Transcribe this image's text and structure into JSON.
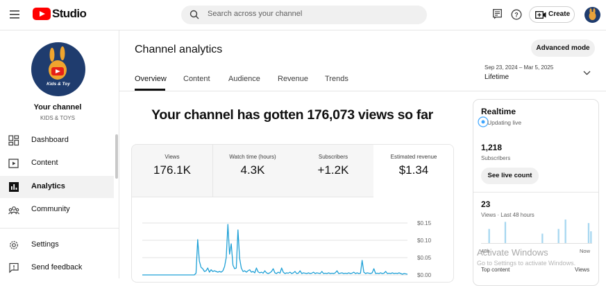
{
  "app": {
    "title": "Studio"
  },
  "search": {
    "placeholder": "Search across your channel"
  },
  "header": {
    "create_label": "Create"
  },
  "sidebar": {
    "channel_label": "Your channel",
    "channel_name": "KIDS & TOYS",
    "avatar_text": "Kids & Toy",
    "items": [
      {
        "label": "Dashboard",
        "icon": "dashboard-icon"
      },
      {
        "label": "Content",
        "icon": "content-icon"
      },
      {
        "label": "Analytics",
        "icon": "analytics-icon",
        "active": true
      },
      {
        "label": "Community",
        "icon": "community-icon"
      },
      {
        "label": "Settings",
        "icon": "settings-icon"
      },
      {
        "label": "Send feedback",
        "icon": "feedback-icon"
      }
    ]
  },
  "main": {
    "title": "Channel analytics",
    "advanced_mode_label": "Advanced mode",
    "tabs": [
      "Overview",
      "Content",
      "Audience",
      "Revenue",
      "Trends"
    ],
    "active_tab": "Overview",
    "date_range": "Sep 23, 2024 – Mar 5, 2025",
    "date_period": "Lifetime",
    "headline": "Your channel has gotten 176,073 views so far",
    "kpis": [
      {
        "title": "Views",
        "value": "176.1K"
      },
      {
        "title": "Watch time (hours)",
        "value": "4.3K"
      },
      {
        "title": "Subscribers",
        "value": "+1.2K"
      },
      {
        "title": "Estimated revenue",
        "value": "$1.34"
      }
    ]
  },
  "chart_data": {
    "type": "line",
    "y_tick_labels": [
      "$0.15",
      "$0.10",
      "$0.05",
      "$0.00"
    ],
    "ylim": [
      0,
      0.15
    ],
    "series": [
      {
        "values": [
          0,
          0,
          0,
          0,
          0,
          0,
          0,
          0,
          0,
          0,
          0,
          0,
          0,
          0,
          0,
          0,
          0,
          0,
          0,
          0,
          0,
          0,
          0,
          0,
          0,
          0,
          0,
          0,
          0,
          0,
          0,
          0,
          0.005,
          0.102,
          0.04,
          0.022,
          0.018,
          0.01,
          0.012,
          0.02,
          0.008,
          0.015,
          0.01,
          0.012,
          0.01,
          0.008,
          0.01,
          0.008,
          0.012,
          0.024,
          0.05,
          0.146,
          0.06,
          0.09,
          0.028,
          0.018,
          0.02,
          0.13,
          0.048,
          0.02,
          0.01,
          0.012,
          0.008,
          0.012,
          0.015,
          0.008,
          0.01,
          0.006,
          0.02,
          0.009,
          0.006,
          0.008,
          0.005,
          0.012,
          0.006,
          0.004,
          0.006,
          0.01,
          0.018,
          0.006,
          0.004,
          0.008,
          0.005,
          0.02,
          0.008,
          0.004,
          0.006,
          0.005,
          0.008,
          0.004,
          0.006,
          0.01,
          0.004,
          0.005,
          0.012,
          0.004,
          0.006,
          0.005,
          0.004,
          0.006,
          0.004,
          0.005,
          0.008,
          0.004,
          0.006,
          0.005,
          0.004,
          0.01,
          0.004,
          0.005,
          0.004,
          0.006,
          0.004,
          0.005,
          0.004,
          0.006,
          0.012,
          0.004,
          0.005,
          0.006,
          0.004,
          0.005,
          0.004,
          0.006,
          0.004,
          0.005,
          0.008,
          0.004,
          0.006,
          0.004,
          0.005,
          0.042,
          0.008,
          0.004,
          0.006,
          0.005,
          0.004,
          0.006,
          0.018,
          0.004,
          0.005,
          0.004,
          0.006,
          0.004,
          0.005,
          0.01,
          0.004,
          0.005,
          0.004,
          0.006,
          0.004,
          0.005,
          0.004,
          0.006,
          0.004,
          0.002,
          0.004,
          0.003,
          0.002
        ]
      }
    ]
  },
  "realtime": {
    "title": "Realtime",
    "status": "Updating live",
    "subscribers_value": "1,218",
    "subscribers_label": "Subscribers",
    "live_count_label": "See live count",
    "views_value": "23",
    "views_label": "Views · Last 48 hours",
    "bars": [
      0,
      0,
      0,
      0.6,
      0,
      0,
      0,
      0,
      0,
      0,
      0.9,
      0,
      0,
      0,
      0,
      0,
      0,
      0,
      0,
      0,
      0,
      0,
      0,
      0,
      0,
      0,
      0.4,
      0,
      0,
      0,
      0,
      0,
      0,
      0.6,
      0,
      0,
      1,
      0,
      0,
      0,
      0,
      0,
      0,
      0,
      0,
      0,
      0.85,
      0.5
    ],
    "axis_start": "48h",
    "axis_end": "Now",
    "table_left": "Top content",
    "table_right": "Views"
  },
  "watermark": {
    "title": "Activate Windows",
    "subtitle": "Go to Settings to activate Windows."
  }
}
